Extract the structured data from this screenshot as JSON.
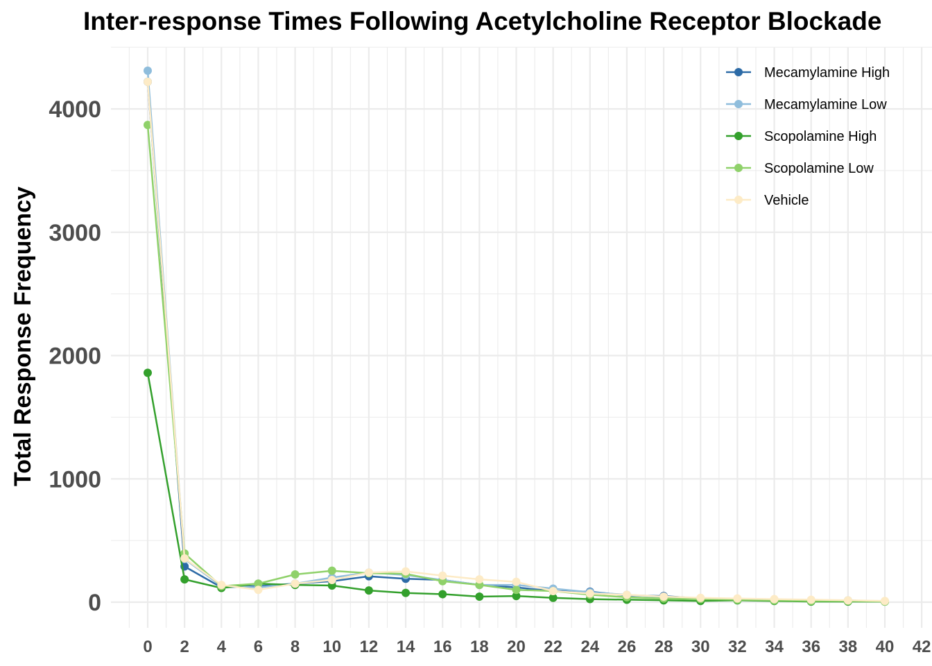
{
  "chart_data": {
    "type": "line",
    "title": "Inter-response Times Following Acetylcholine Receptor Blockade",
    "xlabel": "",
    "ylabel": "Total Response Frequency",
    "xlim": [
      -3,
      42
    ],
    "ylim": [
      -200,
      4500
    ],
    "x_ticks": [
      0,
      2,
      4,
      6,
      8,
      10,
      12,
      14,
      16,
      18,
      20,
      22,
      24,
      26,
      28,
      30,
      32,
      34,
      36,
      38,
      40,
      42
    ],
    "y_ticks": [
      0,
      1000,
      2000,
      3000,
      4000
    ],
    "grid": true,
    "legend_position": "top-right",
    "x": [
      0,
      2,
      4,
      6,
      8,
      10,
      12,
      14,
      16,
      18,
      20,
      22,
      24,
      26,
      28,
      30,
      32,
      34,
      36,
      38,
      40
    ],
    "series": [
      {
        "name": "Mecamylamine High",
        "color": "#2c6aa6",
        "values": [
          4220,
          290,
          120,
          130,
          150,
          170,
          210,
          190,
          180,
          140,
          120,
          90,
          85,
          55,
          50,
          30,
          20,
          15,
          10,
          10,
          5
        ]
      },
      {
        "name": "Mecamylamine Low",
        "color": "#8fbddc",
        "values": [
          4310,
          350,
          130,
          120,
          150,
          200,
          240,
          220,
          180,
          140,
          140,
          110,
          80,
          60,
          40,
          30,
          20,
          20,
          15,
          15,
          5
        ]
      },
      {
        "name": "Scopolamine High",
        "color": "#33a02c",
        "values": [
          1860,
          185,
          115,
          150,
          140,
          135,
          95,
          75,
          65,
          45,
          50,
          35,
          25,
          20,
          15,
          10,
          15,
          10,
          5,
          5,
          5
        ]
      },
      {
        "name": "Scopolamine Low",
        "color": "#8fd16a",
        "values": [
          3870,
          395,
          130,
          150,
          225,
          255,
          235,
          230,
          170,
          140,
          100,
          90,
          60,
          40,
          30,
          25,
          20,
          15,
          10,
          10,
          5
        ]
      },
      {
        "name": "Vehicle",
        "color": "#fdebc6",
        "values": [
          4220,
          355,
          140,
          100,
          150,
          180,
          240,
          250,
          215,
          185,
          165,
          90,
          70,
          60,
          45,
          35,
          30,
          25,
          20,
          15,
          10
        ]
      }
    ]
  }
}
